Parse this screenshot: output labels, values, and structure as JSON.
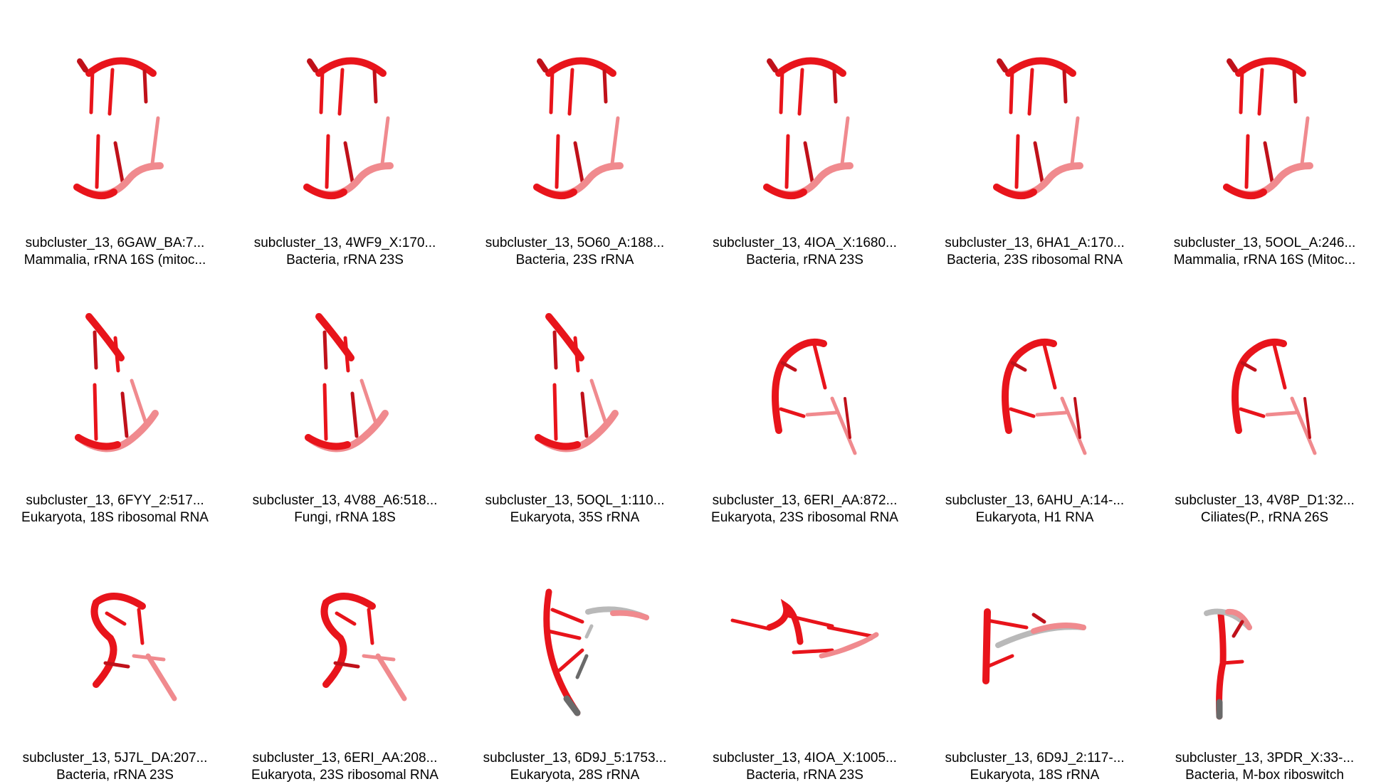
{
  "tiles": [
    {
      "id": "subcluster_13, 6GAW_BA:7...",
      "org": "Mammalia, rRNA 16S (mitoc...",
      "shape": "a"
    },
    {
      "id": "subcluster_13, 4WF9_X:170...",
      "org": "Bacteria, rRNA 23S",
      "shape": "a"
    },
    {
      "id": "subcluster_13, 5O60_A:188...",
      "org": "Bacteria, 23S rRNA",
      "shape": "a"
    },
    {
      "id": "subcluster_13, 4IOA_X:1680...",
      "org": "Bacteria, rRNA 23S",
      "shape": "a"
    },
    {
      "id": "subcluster_13, 6HA1_A:170...",
      "org": "Bacteria, 23S ribosomal RNA",
      "shape": "a"
    },
    {
      "id": "subcluster_13, 5OOL_A:246...",
      "org": "Mammalia, rRNA 16S (Mitoc...",
      "shape": "a"
    },
    {
      "id": "subcluster_13, 6FYY_2:517...",
      "org": "Eukaryota, 18S ribosomal RNA",
      "shape": "b"
    },
    {
      "id": "subcluster_13, 4V88_A6:518...",
      "org": "Fungi, rRNA 18S",
      "shape": "b"
    },
    {
      "id": "subcluster_13, 5OQL_1:110...",
      "org": "Eukaryota, 35S rRNA",
      "shape": "b"
    },
    {
      "id": "subcluster_13, 6ERI_AA:872...",
      "org": "Eukaryota, 23S ribosomal RNA",
      "shape": "c"
    },
    {
      "id": "subcluster_13, 6AHU_A:14-...",
      "org": "Eukaryota, H1 RNA",
      "shape": "c"
    },
    {
      "id": "subcluster_13, 4V8P_D1:32...",
      "org": "Ciliates(P., rRNA 26S",
      "shape": "c"
    },
    {
      "id": "subcluster_13, 5J7L_DA:207...",
      "org": "Bacteria, rRNA 23S",
      "shape": "d"
    },
    {
      "id": "subcluster_13, 6ERI_AA:208...",
      "org": "Eukaryota, 23S ribosomal RNA",
      "shape": "d"
    },
    {
      "id": "subcluster_13, 6D9J_5:1753...",
      "org": "Eukaryota, 28S rRNA",
      "shape": "e"
    },
    {
      "id": "subcluster_13, 4IOA_X:1005...",
      "org": "Bacteria, rRNA 23S",
      "shape": "f"
    },
    {
      "id": "subcluster_13, 6D9J_2:117-...",
      "org": "Eukaryota, 18S rRNA",
      "shape": "g"
    },
    {
      "id": "subcluster_13, 3PDR_X:33-...",
      "org": "Bacteria, M-box riboswitch",
      "shape": "h"
    }
  ],
  "colors": {
    "strand": "#e8141b",
    "strand_dark": "#c0111a",
    "strand_light": "#f08a8e",
    "grey": "#b9b9b9",
    "grey_dark": "#6a6a6a"
  }
}
